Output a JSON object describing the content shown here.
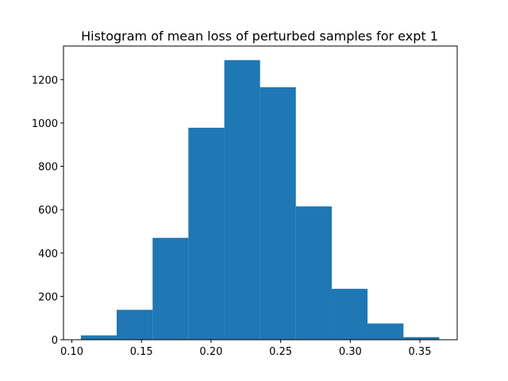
{
  "chart_data": {
    "type": "bar",
    "title": "Histogram of mean loss of perturbed samples for expt 1",
    "xlabel": "",
    "ylabel": "",
    "bin_edges": [
      0.1065,
      0.1322,
      0.158,
      0.1837,
      0.2095,
      0.2352,
      0.2609,
      0.2867,
      0.3124,
      0.3382,
      0.3639
    ],
    "values": [
      20,
      138,
      470,
      978,
      1290,
      1165,
      615,
      235,
      75,
      12
    ],
    "xlim": [
      0.094,
      0.3768
    ],
    "ylim": [
      0,
      1355
    ],
    "xticks": [
      "0.10",
      "0.15",
      "0.20",
      "0.25",
      "0.30",
      "0.35"
    ],
    "yticks": [
      "0",
      "200",
      "400",
      "600",
      "800",
      "1000",
      "1200"
    ],
    "bar_color": "#1f77b4",
    "grid": false
  }
}
